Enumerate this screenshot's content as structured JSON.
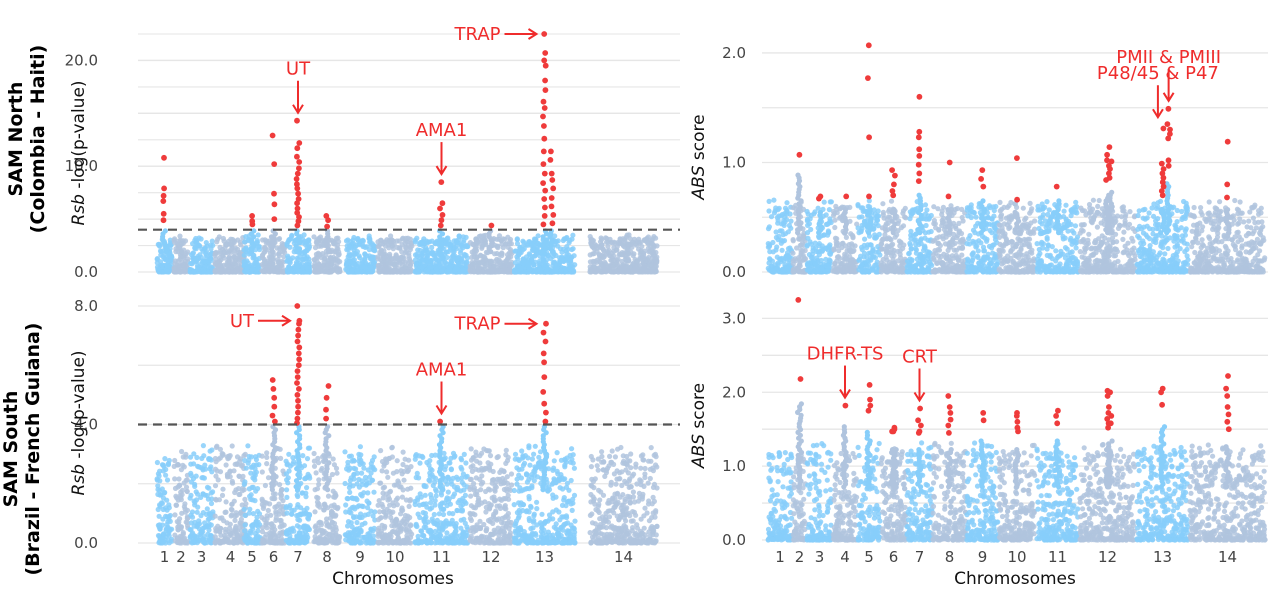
{
  "row_labels": [
    {
      "line1": "SAM North",
      "line2": "(Colombia - Haiti)"
    },
    {
      "line1": "SAM South",
      "line2": "(Brazil - French Guiana)"
    }
  ],
  "colors": {
    "odd_chrom": "#87CEFA",
    "even_chrom": "#B0C4DE",
    "significant": "#EF3B3B",
    "annotation": "#EF2C2C",
    "threshold": "#555555",
    "grid": "#E6E6E6"
  },
  "chart_data": [
    {
      "type": "scatter",
      "name": "rsb-north",
      "ylabel_italic": "Rsb",
      "ylabel_rest": "-log(p-value)",
      "ylim": [
        0,
        22.5
      ],
      "yticks": [
        0,
        10,
        20
      ],
      "ytick_labels": [
        "0.0",
        "10.0",
        "20.0"
      ],
      "threshold": 4,
      "xlabel": "",
      "chromosomes": [
        "1",
        "2",
        "3",
        "4",
        "5",
        "6",
        "7",
        "8",
        "9",
        "10",
        "11",
        "12",
        "13",
        "14"
      ],
      "show_chrom_labels": false,
      "peaks": [
        {
          "chrom": 1,
          "values": [
            10.8,
            7.9,
            7.2,
            6.7,
            5.5,
            4.9
          ]
        },
        {
          "chrom": 5,
          "values": [
            5.3,
            4.8,
            4.5
          ]
        },
        {
          "chrom": 6,
          "values": [
            12.9,
            10.2,
            7.4,
            6.4,
            5.0
          ]
        },
        {
          "chrom": 7,
          "values": [
            14.3,
            12.2,
            11.7,
            10.9,
            10.4,
            9.8,
            9.3,
            8.8,
            8.3,
            7.9,
            7.4,
            6.9,
            6.5,
            6.0,
            5.6,
            5.2,
            4.8,
            4.4
          ]
        },
        {
          "chrom": 8,
          "values": [
            5.3,
            4.9,
            4.3
          ]
        },
        {
          "chrom": 11,
          "values": [
            8.5,
            6.5,
            6.0,
            5.4,
            4.9,
            4.4
          ]
        },
        {
          "chrom": 12,
          "values": [
            4.4
          ]
        },
        {
          "chrom": 13,
          "values": [
            22.5,
            20.7,
            20.0,
            19.5,
            18.1,
            17.2,
            16.1,
            15.5,
            14.7,
            13.8,
            12.6,
            11.4,
            10.2,
            9.3,
            8.4,
            7.7,
            6.9,
            6.1,
            5.3,
            4.5
          ]
        },
        {
          "chrom": 13.6,
          "values": [
            11.4,
            10.6,
            9.3,
            8.7,
            7.9,
            7.0,
            6.2,
            5.4,
            4.6
          ]
        }
      ],
      "annotations": [
        {
          "label": "UT",
          "arrow": "down",
          "chrom": 7,
          "y": 14.3
        },
        {
          "label": "AMA1",
          "arrow": "down",
          "chrom": 11,
          "y": 8.5
        },
        {
          "label": "TRAP",
          "arrow": "right",
          "chrom": 13,
          "y": 22.5
        }
      ]
    },
    {
      "type": "scatter",
      "name": "abs-north",
      "ylabel_italic": "ABS",
      "ylabel_rest": "score",
      "ylim": [
        0,
        2.1
      ],
      "yticks": [
        0,
        1,
        2
      ],
      "ytick_labels": [
        "0.0",
        "1.0",
        "2.0"
      ],
      "xlabel": "",
      "chromosomes": [
        "1",
        "2",
        "3",
        "4",
        "5",
        "6",
        "7",
        "8",
        "9",
        "10",
        "11",
        "12",
        "13",
        "14"
      ],
      "show_chrom_labels": false,
      "peaks": [
        {
          "chrom": 2,
          "values": [
            1.07
          ]
        },
        {
          "chrom": 3,
          "values": [
            0.67,
            0.69
          ]
        },
        {
          "chrom": 4,
          "values": [
            0.69
          ]
        },
        {
          "chrom": 5,
          "values": [
            2.07,
            1.77,
            1.23,
            0.69
          ]
        },
        {
          "chrom": 6,
          "values": [
            0.93,
            0.88,
            0.8,
            0.74,
            0.7
          ]
        },
        {
          "chrom": 7,
          "values": [
            1.6,
            1.28,
            1.23,
            1.12,
            1.06,
            0.98,
            0.9,
            0.83
          ]
        },
        {
          "chrom": 8,
          "values": [
            1.0,
            0.69
          ]
        },
        {
          "chrom": 9,
          "values": [
            0.93,
            0.85,
            0.78
          ]
        },
        {
          "chrom": 10,
          "values": [
            1.04,
            0.66
          ]
        },
        {
          "chrom": 11,
          "values": [
            0.78
          ]
        },
        {
          "chrom": 12,
          "values": [
            1.07,
            1.02,
            0.97,
            0.9,
            0.84
          ]
        },
        {
          "chrom": 12.5,
          "values": [
            1.14,
            1.01,
            0.94,
            0.86
          ]
        },
        {
          "chrom": 13,
          "values": [
            1.31,
            0.99,
            0.94,
            0.9,
            0.86,
            0.82,
            0.78,
            0.74,
            0.7
          ]
        },
        {
          "chrom": 13.6,
          "values": [
            1.49,
            1.35,
            1.3,
            1.26,
            1.22,
            1.02,
            0.97
          ]
        },
        {
          "chrom": 14,
          "values": [
            1.19,
            0.8,
            0.68
          ]
        }
      ],
      "annotations": [
        {
          "label": "P48/45 & P47",
          "arrow": "down",
          "chrom": 13.3,
          "y": 1.34
        },
        {
          "label": "PMII & PMIII",
          "arrow": "down",
          "chrom": 13.6,
          "y": 1.49
        }
      ]
    },
    {
      "type": "scatter",
      "name": "rsb-south",
      "ylabel_italic": "Rsb",
      "ylabel_rest": "-log(p-value)",
      "ylim": [
        0,
        8.1
      ],
      "yticks": [
        0,
        4,
        8
      ],
      "ytick_labels": [
        "0.0",
        "4.0",
        "8.0"
      ],
      "threshold": 4,
      "xlabel": "Chromosomes",
      "chromosomes": [
        "1",
        "2",
        "3",
        "4",
        "5",
        "6",
        "7",
        "8",
        "9",
        "10",
        "11",
        "12",
        "13",
        "14"
      ],
      "show_chrom_labels": true,
      "peaks": [
        {
          "chrom": 6,
          "values": [
            5.5,
            5.2,
            4.9,
            4.6,
            4.3,
            4.1
          ]
        },
        {
          "chrom": 7,
          "values": [
            8.0,
            7.5,
            7.4,
            7.2,
            7.0,
            6.8,
            6.6,
            6.4,
            6.2,
            6.0,
            5.8,
            5.6,
            5.4,
            5.2,
            5.0,
            4.8,
            4.6,
            4.4,
            4.2,
            4.05
          ]
        },
        {
          "chrom": 8,
          "values": [
            5.3,
            4.9,
            4.5,
            4.2
          ]
        },
        {
          "chrom": 11,
          "values": [
            4.1
          ]
        },
        {
          "chrom": 13,
          "values": [
            7.4,
            7.1,
            6.8,
            6.4,
            6.1,
            5.6,
            5.1,
            4.7,
            4.4,
            4.1
          ]
        }
      ],
      "annotations": [
        {
          "label": "UT",
          "arrow": "right",
          "chrom": 7,
          "y": 7.5
        },
        {
          "label": "AMA1",
          "arrow": "down",
          "chrom": 11,
          "y": 4.1
        },
        {
          "label": "TRAP",
          "arrow": "right",
          "chrom": 13,
          "y": 7.4
        }
      ]
    },
    {
      "type": "scatter",
      "name": "abs-south",
      "ylabel_italic": "ABS",
      "ylabel_rest": "score",
      "ylim": [
        0,
        3.1
      ],
      "yticks": [
        0,
        1,
        2,
        3
      ],
      "ytick_labels": [
        "0.0",
        "1.0",
        "2.0",
        "3.0"
      ],
      "xlabel": "Chromosomes",
      "chromosomes": [
        "1",
        "2",
        "3",
        "4",
        "5",
        "6",
        "7",
        "8",
        "9",
        "10",
        "11",
        "12",
        "13",
        "14"
      ],
      "show_chrom_labels": true,
      "peaks": [
        {
          "chrom": 2,
          "values": [
            3.25,
            2.18
          ]
        },
        {
          "chrom": 4,
          "values": [
            1.82
          ]
        },
        {
          "chrom": 5,
          "values": [
            2.1,
            1.9,
            1.82,
            1.75
          ]
        },
        {
          "chrom": 6,
          "values": [
            1.52,
            1.47
          ]
        },
        {
          "chrom": 6.5,
          "values": [
            1.5,
            1.47
          ]
        },
        {
          "chrom": 7,
          "values": [
            1.78,
            1.62,
            1.55,
            1.47,
            1.45
          ]
        },
        {
          "chrom": 8,
          "values": [
            1.95,
            1.8,
            1.72,
            1.63,
            1.55,
            1.45
          ]
        },
        {
          "chrom": 9,
          "values": [
            1.72,
            1.62
          ]
        },
        {
          "chrom": 10,
          "values": [
            1.72,
            1.68,
            1.6,
            1.52,
            1.47
          ]
        },
        {
          "chrom": 11,
          "values": [
            1.75,
            1.68,
            1.58
          ]
        },
        {
          "chrom": 12,
          "values": [
            2.02,
            1.95,
            1.72,
            1.64,
            1.58,
            1.52
          ]
        },
        {
          "chrom": 12.5,
          "values": [
            2.0,
            1.8,
            1.68,
            1.58
          ]
        },
        {
          "chrom": 13,
          "values": [
            2.05,
            2.0,
            1.83
          ]
        },
        {
          "chrom": 14,
          "values": [
            2.22,
            2.05,
            1.95,
            1.8,
            1.7,
            1.6,
            1.5
          ]
        }
      ],
      "annotations": [
        {
          "label": "DHFR-TS",
          "arrow": "down",
          "chrom": 4,
          "y": 1.82
        },
        {
          "label": "CRT",
          "arrow": "down",
          "chrom": 7,
          "y": 1.78
        }
      ]
    }
  ]
}
